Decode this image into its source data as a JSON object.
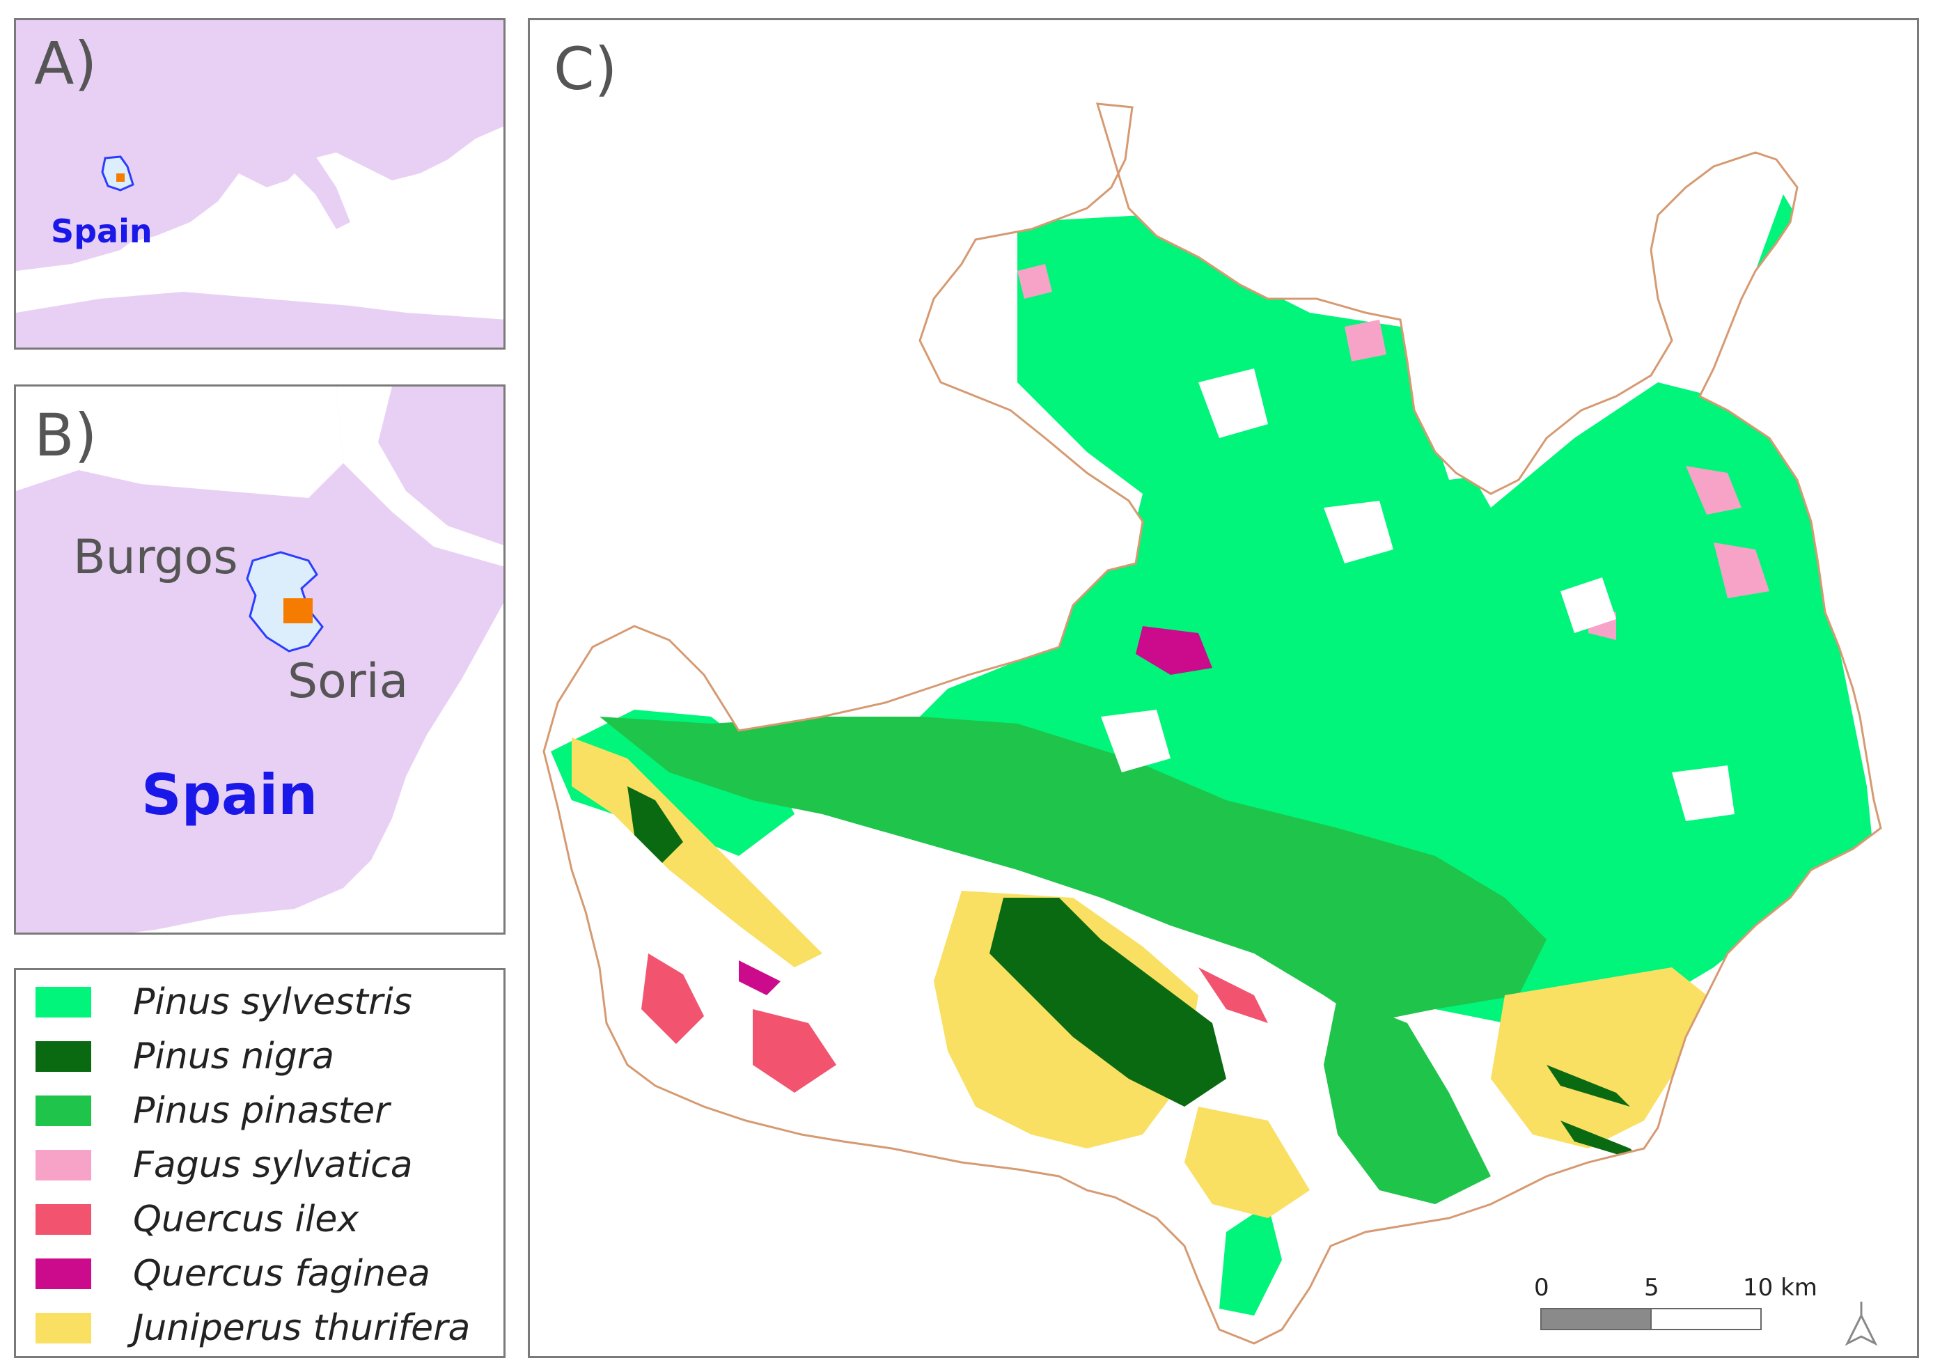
{
  "panels": {
    "a": {
      "label": "A)",
      "country": "Spain"
    },
    "b": {
      "label": "B)",
      "province1": "Burgos",
      "province2": "Soria",
      "country": "Spain"
    },
    "c": {
      "label": "C)"
    }
  },
  "legend": [
    {
      "name": "Pinus sylvestris",
      "color": "#00f57a"
    },
    {
      "name": "Pinus nigra",
      "color": "#0a6a12"
    },
    {
      "name": "Pinus pinaster",
      "color": "#1fc44a"
    },
    {
      "name": "Fagus sylvatica",
      "color": "#f6a3c7"
    },
    {
      "name": "Quercus ilex",
      "color": "#f2546f"
    },
    {
      "name": "Quercus faginea",
      "color": "#cc0a8c"
    },
    {
      "name": "Juniperus thurifera",
      "color": "#f9e062"
    }
  ],
  "scale_bar": {
    "tick0": "0",
    "tick1": "5",
    "tick2": "10 km"
  },
  "colors": {
    "land": "#e8d0f5",
    "study_province": "#dceefb",
    "study_site": "#f57c00",
    "border": "#d69a72",
    "label_blue": "#1a18e8"
  }
}
